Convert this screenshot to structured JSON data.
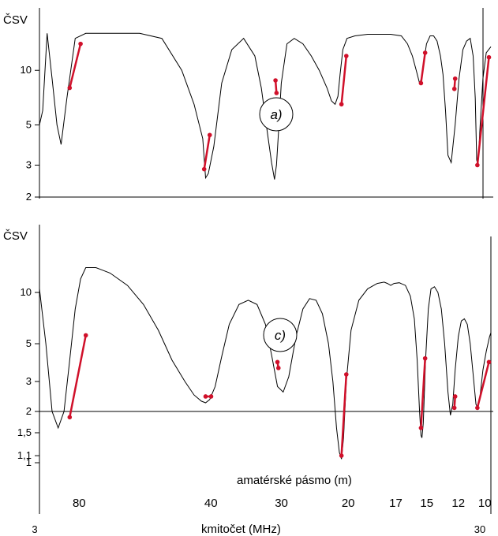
{
  "chart_data": {
    "type": "line",
    "x_ticks": [
      {
        "value": 3,
        "label": "3"
      },
      {
        "value": 30,
        "label": "30"
      }
    ],
    "xlabel": "kmitočet  (MHz)",
    "band_axis_caption": "amatérské pásmo   (m)",
    "bands": [
      {
        "label": "80",
        "freq": 3.6
      },
      {
        "label": "40",
        "freq": 7.05
      },
      {
        "label": "30",
        "freq": 10.1
      },
      {
        "label": "20",
        "freq": 14.2
      },
      {
        "label": "17",
        "freq": 18.1
      },
      {
        "label": "15",
        "freq": 21.2
      },
      {
        "label": "12",
        "freq": 24.9
      },
      {
        "label": "10",
        "freq": 28.5
      }
    ],
    "colors": {
      "curve": "#000000",
      "band": "#d0102a",
      "ref_line": "#000000"
    },
    "panels": [
      {
        "panel_label": "a)",
        "ylabel": "ČSV",
        "y_ticks": [
          {
            "value": 10,
            "label": "10"
          },
          {
            "value": 5,
            "label": "5"
          },
          {
            "value": 3,
            "label": "3"
          },
          {
            "value": 2,
            "label": "2"
          }
        ],
        "ylim": [
          2,
          16
        ],
        "reference_line": 2,
        "series": [
          {
            "x": [
              3.0,
              3.05,
              3.12,
              3.2,
              3.28,
              3.35,
              3.45,
              3.6,
              3.8,
              4.2,
              5.0,
              5.6,
              6.2,
              6.6,
              6.9,
              7.0,
              7.1,
              7.3,
              7.6,
              8.0,
              8.5,
              9.0,
              9.3,
              9.6,
              9.8,
              9.95,
              10.05,
              10.15,
              10.3,
              10.6,
              11.0,
              11.5,
              12.0,
              12.5,
              13.0,
              13.3,
              13.55,
              13.75,
              13.9,
              14.1,
              14.4,
              15.0,
              16.0,
              17.0,
              18.0,
              19.0,
              19.6,
              20.1,
              20.5,
              20.85,
              21.05,
              21.3,
              21.6,
              22.0,
              22.4,
              22.8,
              23.2,
              23.5,
              23.8,
              24.1,
              24.5,
              25.0,
              25.5,
              26.0,
              26.5,
              27.0,
              27.4,
              27.7,
              27.9,
              28.1,
              28.4,
              28.8,
              29.3,
              30.0
            ],
            "y": [
              5.0,
              6.0,
              16,
              9.0,
              5.0,
              3.9,
              7.0,
              15,
              16,
              16,
              16,
              15,
              10,
              6.5,
              4.2,
              2.55,
              2.7,
              3.8,
              8.5,
              13,
              15,
              12,
              8.0,
              4.5,
              3.1,
              2.5,
              3.0,
              4.5,
              8.5,
              14,
              15,
              14,
              12,
              10,
              8.0,
              6.8,
              6.5,
              7.2,
              9.5,
              13,
              15,
              15.5,
              15.8,
              15.8,
              15.8,
              15.5,
              14,
              12,
              10,
              8.5,
              9.0,
              11,
              14,
              15.5,
              15.5,
              14.5,
              12,
              9.5,
              6.0,
              3.4,
              3.1,
              5.0,
              9.0,
              13,
              14.5,
              15,
              12,
              7.0,
              3.2,
              3.0,
              5.0,
              9.0,
              12.5,
              13.5
            ]
          }
        ],
        "band_segments": [
          {
            "x": [
              3.5,
              3.7
            ],
            "y": [
              8.0,
              14.0
            ]
          },
          {
            "x": [
              6.95,
              7.15
            ],
            "y": [
              2.85,
              4.4
            ]
          },
          {
            "x": [
              10.0,
              10.05
            ],
            "y": [
              8.8,
              7.5
            ]
          },
          {
            "x": [
              14.0,
              14.35
            ],
            "y": [
              6.5,
              12.0
            ]
          },
          {
            "x": [
              21.0,
              21.45
            ],
            "y": [
              8.5,
              12.5
            ]
          },
          {
            "x": [
              24.9,
              25.0
            ],
            "y": [
              7.9,
              9.0
            ]
          },
          {
            "x": [
              28.0,
              29.7
            ],
            "y": [
              3.0,
              11.8
            ]
          }
        ]
      },
      {
        "panel_label": "c)",
        "ylabel": "ČSV",
        "y_ticks": [
          {
            "value": 10,
            "label": "10"
          },
          {
            "value": 5,
            "label": "5"
          },
          {
            "value": 3,
            "label": "3"
          },
          {
            "value": 2,
            "label": "2"
          },
          {
            "value": 1.5,
            "label": "1,5"
          },
          {
            "value": 1.1,
            "label": "1,1"
          },
          {
            "value": 1,
            "label": "1"
          }
        ],
        "ylim": [
          1,
          14
        ],
        "reference_line": 2,
        "series": [
          {
            "x": [
              3.0,
              3.1,
              3.2,
              3.3,
              3.4,
              3.5,
              3.6,
              3.7,
              3.8,
              4.0,
              4.3,
              4.7,
              5.1,
              5.5,
              5.9,
              6.3,
              6.6,
              6.85,
              7.0,
              7.15,
              7.35,
              7.6,
              7.9,
              8.3,
              8.7,
              9.1,
              9.5,
              9.8,
              10.1,
              10.4,
              10.7,
              11.1,
              11.5,
              11.9,
              12.3,
              12.7,
              13.1,
              13.4,
              13.65,
              13.85,
              14.0,
              14.15,
              14.35,
              14.7,
              15.3,
              16.0,
              16.8,
              17.4,
              17.7,
              18.0,
              18.3,
              18.8,
              19.4,
              19.9,
              20.3,
              20.6,
              20.85,
              21.0,
              21.1,
              21.25,
              21.5,
              21.8,
              22.1,
              22.5,
              22.9,
              23.3,
              23.7,
              24.1,
              24.4,
              24.7,
              25.0,
              25.4,
              25.8,
              26.2,
              26.6,
              27.0,
              27.4,
              27.8,
              28.1,
              28.4,
              28.8,
              29.3,
              29.8,
              30.0
            ],
            "y": [
              10.5,
              5.0,
              2.0,
              1.6,
              2.0,
              4.0,
              8.0,
              12,
              14,
              14,
              13,
              11,
              8.5,
              6.0,
              4.0,
              3.0,
              2.5,
              2.3,
              2.25,
              2.35,
              2.8,
              4.2,
              6.5,
              8.5,
              9.0,
              8.5,
              6.5,
              4.3,
              2.8,
              2.6,
              3.2,
              5.5,
              8.0,
              9.2,
              9.0,
              7.5,
              5.0,
              3.0,
              1.6,
              1.15,
              1.05,
              1.4,
              3.0,
              6.0,
              9.0,
              10.5,
              11.3,
              11.5,
              11.3,
              11.0,
              11.3,
              11.4,
              11.0,
              9.5,
              7.0,
              4.0,
              2.0,
              1.45,
              1.4,
              1.7,
              4.0,
              8.0,
              10.5,
              10.8,
              10.0,
              8.0,
              5.0,
              2.6,
              1.9,
              2.2,
              3.5,
              5.5,
              6.8,
              7.0,
              6.5,
              5.0,
              3.3,
              2.2,
              2.1,
              2.5,
              3.5,
              4.5,
              5.5,
              5.8
            ]
          }
        ],
        "band_segments": [
          {
            "x": [
              3.5,
              3.8
            ],
            "y": [
              1.85,
              5.6
            ]
          },
          {
            "x": [
              7.0,
              7.2
            ],
            "y": [
              2.45,
              2.45
            ]
          },
          {
            "x": [
              10.1,
              10.15
            ],
            "y": [
              3.9,
              3.6
            ]
          },
          {
            "x": [
              14.0,
              14.35
            ],
            "y": [
              1.1,
              3.3
            ]
          },
          {
            "x": [
              21.0,
              21.45
            ],
            "y": [
              1.6,
              4.1
            ]
          },
          {
            "x": [
              24.9,
              25.0
            ],
            "y": [
              2.1,
              2.45
            ]
          },
          {
            "x": [
              28.0,
              29.7
            ],
            "y": [
              2.1,
              3.9
            ]
          }
        ]
      }
    ]
  }
}
